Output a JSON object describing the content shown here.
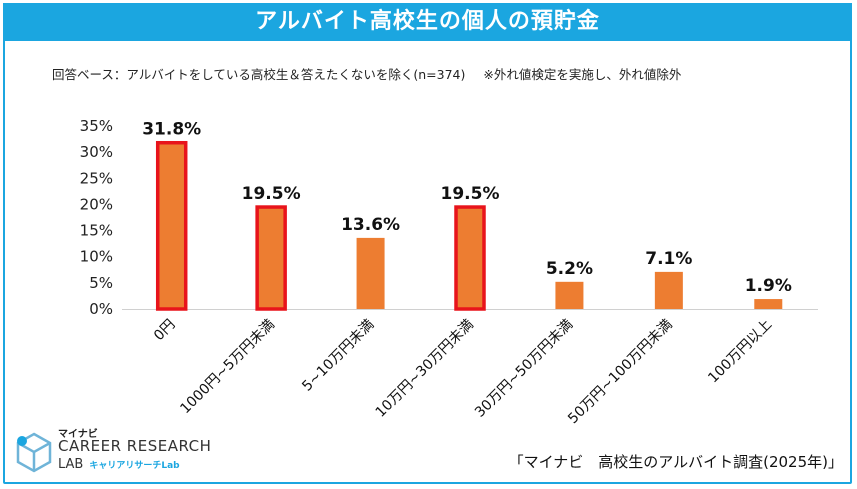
{
  "header": {
    "title": "アルバイト高校生の個人の預貯金"
  },
  "note": {
    "base": "回答ベース：アルバイトをしている高校生＆答えたくないを除く(n=374)",
    "remark": "※外れ値検定を実施し、外れ値除外"
  },
  "chart_data": {
    "type": "bar",
    "title": "アルバイト高校生の個人の預貯金",
    "categories": [
      "0円",
      "1000円~5万円未満",
      "5~10万円未満",
      "10万円~30万円未満",
      "30万円~50万円未満",
      "50万円~100万円未満",
      "100万円以上"
    ],
    "values": [
      31.8,
      19.5,
      13.6,
      19.5,
      5.2,
      7.1,
      1.9
    ],
    "value_labels": [
      "31.8%",
      "19.5%",
      "13.6%",
      "19.5%",
      "5.2%",
      "7.1%",
      "1.9%"
    ],
    "highlighted": [
      true,
      true,
      false,
      true,
      false,
      false,
      false
    ],
    "ylim": [
      0,
      35
    ],
    "yticks": [
      0,
      5,
      10,
      15,
      20,
      25,
      30,
      35
    ],
    "ytick_labels": [
      "0%",
      "5%",
      "10%",
      "15%",
      "20%",
      "25%",
      "30%",
      "35%"
    ],
    "bar_color": "#ed7d31",
    "highlight_color": "#e8141b",
    "xlabel": "",
    "ylabel": ""
  },
  "source": "「マイナビ　高校生のアルバイト調査(2025年)」",
  "logo": {
    "brand": "マイナビ",
    "line1": "CAREER RESEARCH",
    "line2": "LAB",
    "line2_jp": "キャリアリサーチLab"
  },
  "colors": {
    "accent": "#1ba6e0"
  }
}
